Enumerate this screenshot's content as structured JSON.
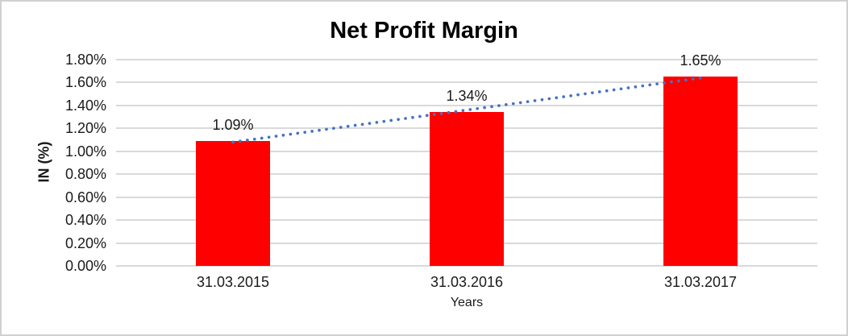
{
  "chart_data": {
    "type": "bar",
    "title": "Net Profit Margin",
    "xlabel": "Years",
    "ylabel": "IN (%)",
    "categories": [
      "31.03.2015",
      "31.03.2016",
      "31.03.2017"
    ],
    "values": [
      1.09,
      1.34,
      1.65
    ],
    "data_labels": [
      "1.09%",
      "1.34%",
      "1.65%"
    ],
    "ylim": [
      0,
      1.8
    ],
    "y_tick_values": [
      0,
      0.2,
      0.4,
      0.6,
      0.8,
      1.0,
      1.2,
      1.4,
      1.6,
      1.8
    ],
    "y_tick_labels": [
      "0.00%",
      "0.20%",
      "0.40%",
      "0.60%",
      "0.80%",
      "1.00%",
      "1.20%",
      "1.40%",
      "1.60%",
      "1.80%"
    ],
    "grid": true,
    "legend": "none",
    "bar_color": "#ff0000",
    "gridline_color": "#d9d9d9",
    "text_color": "#1a1a1a",
    "trendline": {
      "type": "linear",
      "style": "dotted",
      "color": "#4472c4"
    }
  }
}
